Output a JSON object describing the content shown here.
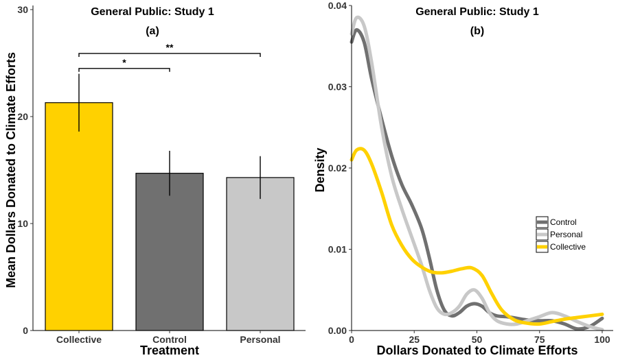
{
  "chart_data": [
    {
      "type": "bar",
      "title": "General Public: Study 1",
      "subtitle": "(a)",
      "xlabel": "Treatment",
      "ylabel": "Mean Dollars Donated to Climate Efforts",
      "ylim": [
        0,
        30
      ],
      "yticks": [
        "0",
        "10",
        "20",
        "30"
      ],
      "categories": [
        "Collective",
        "Control",
        "Personal"
      ],
      "values": [
        21.3,
        14.7,
        14.3
      ],
      "error_bars": [
        {
          "low": 18.6,
          "high": 24.0
        },
        {
          "low": 12.6,
          "high": 16.8
        },
        {
          "low": 12.3,
          "high": 16.3
        }
      ],
      "colors": [
        "#FFD100",
        "#707070",
        "#C8C8C8"
      ],
      "significance": [
        {
          "from": "Collective",
          "to": "Control",
          "label": "*",
          "y": 24.5
        },
        {
          "from": "Collective",
          "to": "Personal",
          "label": "**",
          "y": 25.9
        }
      ],
      "grid": false
    },
    {
      "type": "line",
      "title": "General Public: Study 1",
      "subtitle": "(b)",
      "xlabel": "Dollars Donated to Climate Efforts",
      "ylabel": "Density",
      "xlim": [
        0,
        100
      ],
      "ylim": [
        0,
        0.04
      ],
      "xticks": [
        "0",
        "25",
        "50",
        "75",
        "100"
      ],
      "yticks": [
        "0.00",
        "0.01",
        "0.02",
        "0.03",
        "0.04"
      ],
      "legend_position": "right",
      "grid": false,
      "series": [
        {
          "name": "Control",
          "color": "#707070",
          "x": [
            0,
            2,
            5,
            8,
            12,
            16,
            20,
            24,
            28,
            31,
            34,
            37,
            40,
            43,
            46,
            49,
            52,
            55,
            58,
            62,
            66,
            70,
            75,
            80,
            85,
            90,
            95,
            100
          ],
          "y": [
            0.0355,
            0.037,
            0.0355,
            0.031,
            0.026,
            0.0215,
            0.018,
            0.0155,
            0.0125,
            0.009,
            0.005,
            0.0025,
            0.0018,
            0.0022,
            0.003,
            0.0033,
            0.003,
            0.0022,
            0.0018,
            0.0017,
            0.0015,
            0.0013,
            0.0012,
            0.0012,
            0.0008,
            0.0002,
            0.0005,
            0.0015
          ]
        },
        {
          "name": "Personal",
          "color": "#C8C8C8",
          "x": [
            0,
            2,
            5,
            8,
            12,
            16,
            20,
            24,
            28,
            31,
            34,
            37,
            40,
            43,
            46,
            49,
            52,
            55,
            58,
            62,
            66,
            70,
            75,
            80,
            85,
            90,
            95,
            100
          ],
          "y": [
            0.0365,
            0.0385,
            0.0375,
            0.033,
            0.025,
            0.019,
            0.015,
            0.0115,
            0.008,
            0.005,
            0.0028,
            0.002,
            0.0022,
            0.003,
            0.0045,
            0.005,
            0.004,
            0.0022,
            0.0012,
            0.0008,
            0.0008,
            0.0012,
            0.0017,
            0.0022,
            0.0018,
            0.0011,
            0.0005,
            0.0001
          ]
        },
        {
          "name": "Collective",
          "color": "#FFD100",
          "x": [
            0,
            2,
            5,
            8,
            12,
            16,
            20,
            24,
            28,
            32,
            36,
            40,
            44,
            48,
            52,
            56,
            60,
            65,
            70,
            75,
            80,
            85,
            90,
            95,
            100
          ],
          "y": [
            0.021,
            0.0222,
            0.0222,
            0.0205,
            0.017,
            0.013,
            0.0105,
            0.0088,
            0.0078,
            0.0072,
            0.0071,
            0.0073,
            0.0076,
            0.0077,
            0.0068,
            0.0045,
            0.0025,
            0.0013,
            0.0009,
            0.0008,
            0.0011,
            0.0014,
            0.0016,
            0.0018,
            0.002
          ]
        }
      ]
    }
  ]
}
